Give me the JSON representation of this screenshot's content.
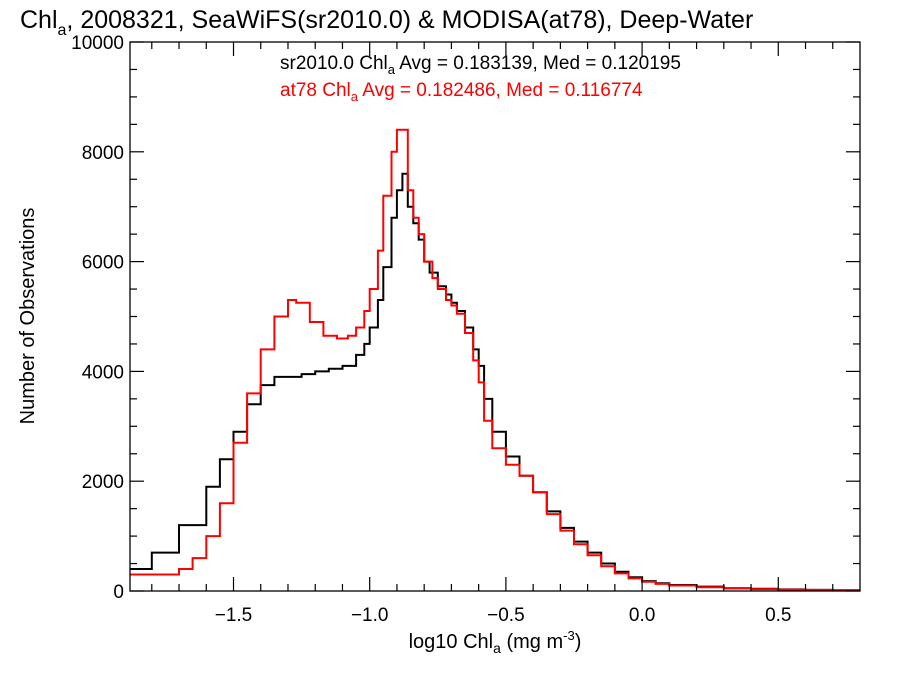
{
  "chart_data": {
    "type": "line",
    "title": {
      "prefix": "Chl",
      "sub": "a",
      "rest": ", 2008321, SeaWiFS(sr2010.0) & MODISA(at78), Deep-Water"
    },
    "xlabel": {
      "prefix": "log10 Chl",
      "sub": "a",
      "mid": " (mg m",
      "sup": "-3",
      "suffix": ")"
    },
    "ylabel": "Number of Observations",
    "xlim": [
      -1.88,
      0.8
    ],
    "ylim": [
      0,
      10000
    ],
    "xticks": [
      -1.5,
      -1.0,
      -0.5,
      0.0,
      0.5
    ],
    "xtick_labels": [
      "−1.5",
      "−1.0",
      "−0.5",
      "0.0",
      "0.5"
    ],
    "yticks": [
      0,
      2000,
      4000,
      6000,
      8000,
      10000
    ],
    "ytick_labels": [
      "0",
      "2000",
      "4000",
      "6000",
      "8000",
      "10000"
    ],
    "annotations": [
      {
        "prefix": "sr2010.0 Chl",
        "sub": "a",
        "rest": " Avg = 0.183139, Med = 0.120195",
        "color": "#000000"
      },
      {
        "prefix": "at78 Chl",
        "sub": "a",
        "rest": " Avg = 0.182486, Med = 0.116774",
        "color": "#ff0000"
      }
    ],
    "series": [
      {
        "name": "sr2010.0",
        "color": "#000000",
        "x": [
          -1.88,
          -1.8,
          -1.7,
          -1.6,
          -1.55,
          -1.5,
          -1.45,
          -1.4,
          -1.35,
          -1.3,
          -1.25,
          -1.2,
          -1.15,
          -1.1,
          -1.05,
          -1.02,
          -1.0,
          -0.97,
          -0.95,
          -0.92,
          -0.9,
          -0.88,
          -0.86,
          -0.84,
          -0.82,
          -0.8,
          -0.78,
          -0.75,
          -0.72,
          -0.7,
          -0.68,
          -0.65,
          -0.62,
          -0.6,
          -0.58,
          -0.55,
          -0.5,
          -0.45,
          -0.4,
          -0.35,
          -0.3,
          -0.25,
          -0.2,
          -0.15,
          -0.1,
          -0.05,
          0.0,
          0.05,
          0.1,
          0.2,
          0.3,
          0.4,
          0.5,
          0.6,
          0.7,
          0.8
        ],
        "y": [
          400,
          700,
          1200,
          1900,
          2400,
          2900,
          3400,
          3750,
          3900,
          3900,
          3950,
          4000,
          4050,
          4100,
          4300,
          4500,
          4800,
          5300,
          5900,
          6800,
          7300,
          7600,
          7000,
          6700,
          6400,
          6000,
          5800,
          5550,
          5400,
          5250,
          5100,
          4800,
          4400,
          4100,
          3500,
          2900,
          2450,
          2100,
          1800,
          1450,
          1150,
          900,
          700,
          500,
          350,
          250,
          180,
          140,
          110,
          80,
          50,
          40,
          30,
          20,
          15,
          15
        ]
      },
      {
        "name": "at78",
        "color": "#ff0000",
        "x": [
          -1.88,
          -1.8,
          -1.7,
          -1.65,
          -1.6,
          -1.55,
          -1.5,
          -1.45,
          -1.4,
          -1.35,
          -1.3,
          -1.27,
          -1.22,
          -1.17,
          -1.12,
          -1.08,
          -1.05,
          -1.02,
          -1.0,
          -0.97,
          -0.95,
          -0.92,
          -0.9,
          -0.88,
          -0.86,
          -0.84,
          -0.82,
          -0.8,
          -0.77,
          -0.75,
          -0.72,
          -0.7,
          -0.68,
          -0.65,
          -0.62,
          -0.6,
          -0.58,
          -0.55,
          -0.5,
          -0.45,
          -0.4,
          -0.35,
          -0.3,
          -0.25,
          -0.2,
          -0.15,
          -0.1,
          -0.05,
          0.0,
          0.05,
          0.1,
          0.2,
          0.3,
          0.4,
          0.5,
          0.6,
          0.7,
          0.8
        ],
        "y": [
          300,
          300,
          400,
          600,
          1000,
          1600,
          2700,
          3600,
          4400,
          5000,
          5300,
          5250,
          4900,
          4650,
          4600,
          4650,
          4800,
          5100,
          5500,
          6200,
          7200,
          8000,
          8400,
          8400,
          7300,
          6800,
          6500,
          6000,
          5700,
          5500,
          5300,
          5200,
          5050,
          4700,
          4200,
          3800,
          3100,
          2600,
          2300,
          2100,
          1800,
          1400,
          1100,
          850,
          650,
          450,
          320,
          230,
          170,
          130,
          100,
          70,
          50,
          35,
          25,
          20,
          15,
          15
        ]
      }
    ]
  }
}
